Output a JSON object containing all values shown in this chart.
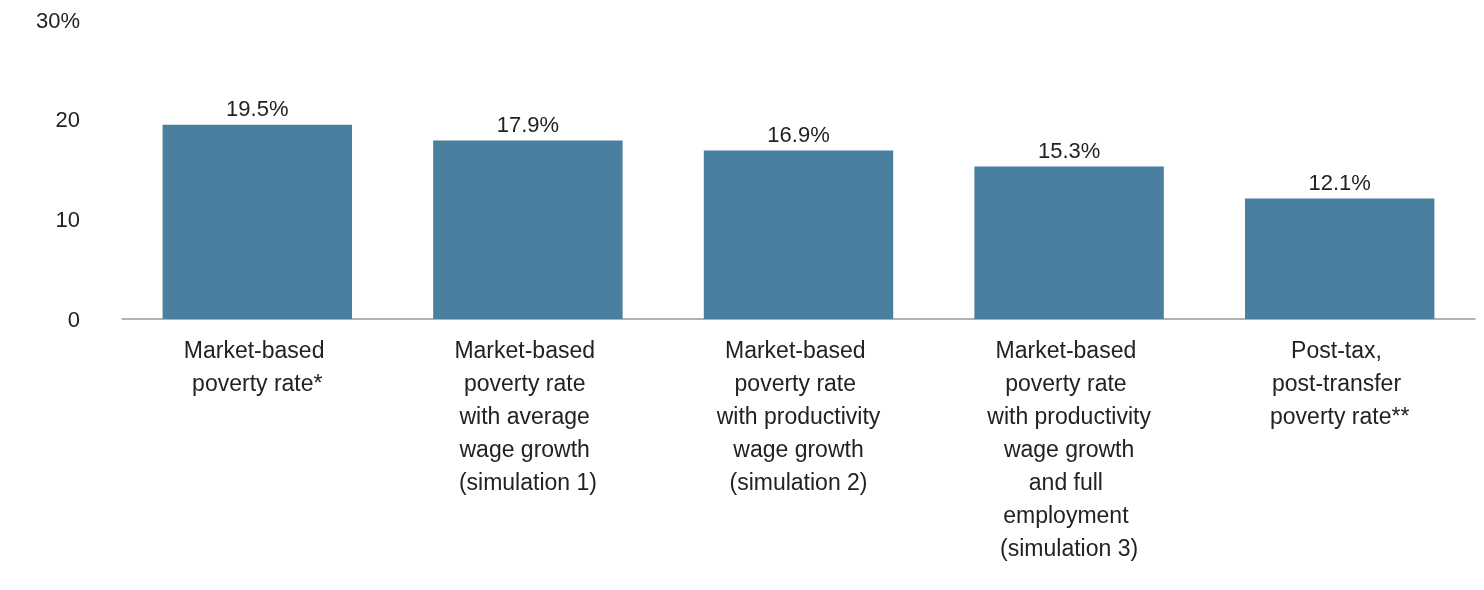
{
  "chart_data": {
    "type": "bar",
    "categories": [
      "Market-based poverty rate*",
      "Market-based poverty rate with average wage growth (simulation 1)",
      "Market-based poverty rate with productivity wage growth (simulation 2)",
      "Market-based poverty rate with productivity wage growth and full employment (simulation 3)",
      "Post-tax, post-transfer poverty rate**"
    ],
    "values": [
      19.5,
      17.9,
      16.9,
      15.3,
      12.1
    ],
    "value_labels": [
      "19.5%",
      "17.9%",
      "16.9%",
      "15.3%",
      "12.1%"
    ],
    "color": "#4a7fa0",
    "ylim": [
      0,
      30
    ],
    "yticks": [
      0,
      10,
      20,
      {
        "value": 30,
        "label": "30%"
      }
    ],
    "grid": false
  }
}
